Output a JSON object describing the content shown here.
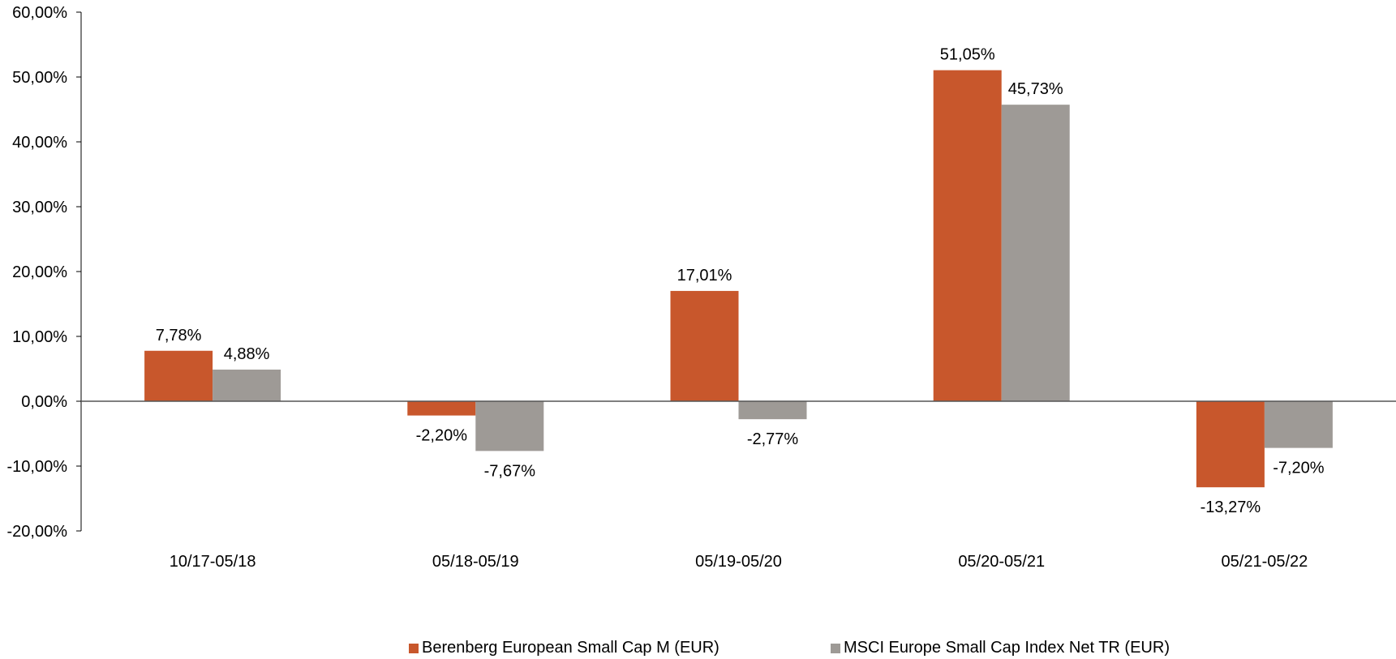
{
  "chart_data": {
    "type": "bar",
    "categories": [
      "10/17-05/18",
      "05/18-05/19",
      "05/19-05/20",
      "05/20-05/21",
      "05/21-05/22"
    ],
    "series": [
      {
        "name": "Berenberg European Small Cap M (EUR)",
        "color": "#c8572c",
        "values": [
          7.78,
          -2.2,
          17.01,
          51.05,
          -13.27
        ],
        "labels": [
          "7,78%",
          "-2,20%",
          "17,01%",
          "51,05%",
          "-13,27%"
        ]
      },
      {
        "name": "MSCI Europe Small Cap Index Net TR (EUR)",
        "color": "#9e9a96",
        "values": [
          4.88,
          -7.67,
          -2.77,
          45.73,
          -7.2
        ],
        "labels": [
          "4,88%",
          "-7,67%",
          "-2,77%",
          "45,73%",
          "-7,20%"
        ]
      }
    ],
    "ylim": [
      -20,
      60
    ],
    "yticks": [
      60,
      50,
      40,
      30,
      20,
      10,
      0,
      -10,
      -20
    ],
    "ytick_labels": [
      "60,00%",
      "50,00%",
      "40,00%",
      "30,00%",
      "20,00%",
      "10,00%",
      "0,00%",
      "-10,00%",
      "-20,00%"
    ],
    "grid": false,
    "legend_position": "bottom"
  }
}
